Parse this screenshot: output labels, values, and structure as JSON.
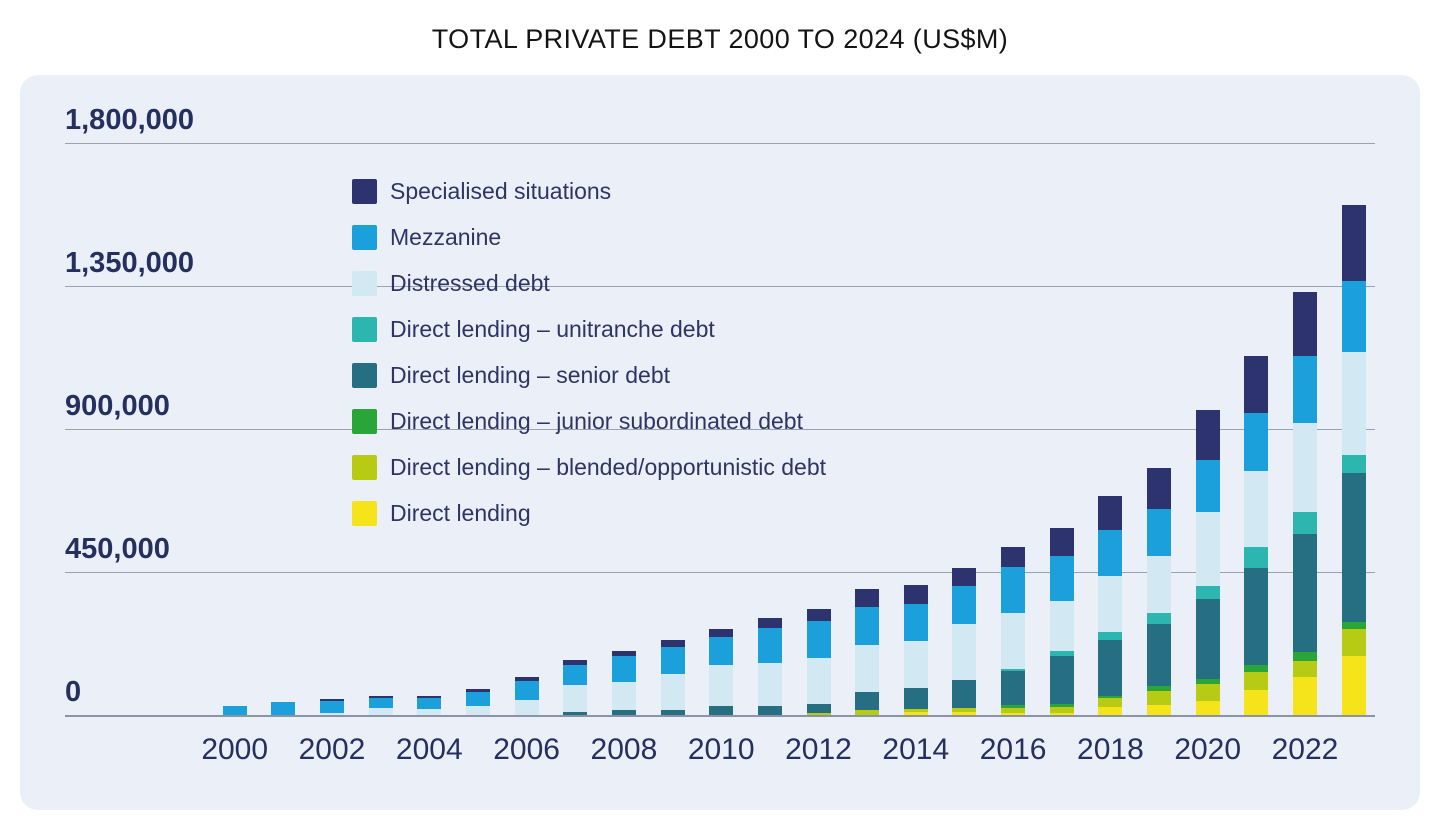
{
  "title": "TOTAL PRIVATE DEBT 2000 TO 2024 (US$M)",
  "panel_background": "#eaeff8",
  "gridline_color": "#9aa2b3",
  "axis_label_color": "#25305f",
  "chart_data": {
    "type": "bar",
    "stacked": true,
    "unit": "US$M",
    "title": "TOTAL PRIVATE DEBT 2000 TO 2024 (US$M)",
    "x": [
      2000,
      2001,
      2002,
      2003,
      2004,
      2005,
      2006,
      2007,
      2008,
      2009,
      2010,
      2011,
      2012,
      2013,
      2014,
      2015,
      2016,
      2017,
      2018,
      2019,
      2020,
      2021,
      2022,
      2023
    ],
    "x_tick_labels": [
      "2000",
      "2002",
      "2004",
      "2006",
      "2008",
      "2010",
      "2012",
      "2014",
      "2016",
      "2018",
      "2020",
      "2022"
    ],
    "ylim": [
      0,
      1800000
    ],
    "y_ticks": [
      0,
      450000,
      900000,
      1350000,
      1800000
    ],
    "y_tick_labels": [
      "0",
      "450,000",
      "900,000",
      "1,350,000",
      "1,800,000"
    ],
    "grid": "horizontal",
    "legend_position": "top-left-overlay",
    "series": [
      {
        "name": "Specialised situations",
        "color": "#2c336e",
        "values": [
          0,
          0,
          8000,
          8000,
          9000,
          11000,
          15000,
          18000,
          16000,
          21000,
          25000,
          29000,
          39000,
          58000,
          60000,
          56000,
          65000,
          89000,
          105000,
          131000,
          157000,
          180000,
          201000,
          238000
        ]
      },
      {
        "name": "Mezzanine",
        "color": "#1ba0dc",
        "values": [
          27000,
          40000,
          38000,
          32000,
          33000,
          44000,
          59000,
          62000,
          84000,
          86000,
          89000,
          110000,
          115000,
          121000,
          116000,
          121000,
          145000,
          140000,
          147000,
          147000,
          163000,
          182000,
          210000,
          225000
        ]
      },
      {
        "name": "Distressed debt",
        "color": "#d2e8f3",
        "values": [
          0,
          0,
          6000,
          21000,
          19000,
          27000,
          47000,
          84000,
          87000,
          113000,
          131000,
          136000,
          147000,
          147000,
          149000,
          175000,
          175000,
          160000,
          176000,
          179000,
          234000,
          240000,
          282000,
          325000
        ]
      },
      {
        "name": "Direct lending – unitranche debt",
        "color": "#2db5b0",
        "values": [
          0,
          0,
          0,
          0,
          0,
          0,
          0,
          0,
          0,
          0,
          0,
          0,
          0,
          0,
          0,
          0,
          7000,
          15000,
          23000,
          34000,
          39000,
          66000,
          68000,
          55000
        ]
      },
      {
        "name": "Direct lending – senior debt",
        "color": "#266f82",
        "values": [
          0,
          0,
          0,
          0,
          0,
          0,
          0,
          10000,
          16000,
          16000,
          27000,
          29000,
          28000,
          55000,
          65000,
          90000,
          108000,
          150000,
          178000,
          197000,
          252000,
          306000,
          373000,
          470000
        ]
      },
      {
        "name": "Direct lending – junior subordinated debt",
        "color": "#2aa638",
        "values": [
          0,
          0,
          0,
          0,
          0,
          0,
          0,
          0,
          0,
          0,
          0,
          0,
          0,
          0,
          0,
          0,
          8000,
          10000,
          7000,
          13000,
          16000,
          21000,
          27000,
          22000
        ]
      },
      {
        "name": "Direct lending – blended/opportunistic debt",
        "color": "#b8cb14",
        "values": [
          0,
          0,
          0,
          0,
          0,
          0,
          0,
          0,
          0,
          0,
          0,
          0,
          6000,
          17000,
          11000,
          13000,
          16000,
          18000,
          28000,
          44000,
          53000,
          57000,
          50000,
          85000
        ]
      },
      {
        "name": "Direct lending",
        "color": "#f5e41a",
        "values": [
          0,
          0,
          0,
          0,
          0,
          0,
          0,
          0,
          0,
          0,
          0,
          0,
          0,
          0,
          8000,
          8000,
          6000,
          7000,
          24000,
          33000,
          45000,
          78000,
          120000,
          185000
        ]
      }
    ]
  }
}
